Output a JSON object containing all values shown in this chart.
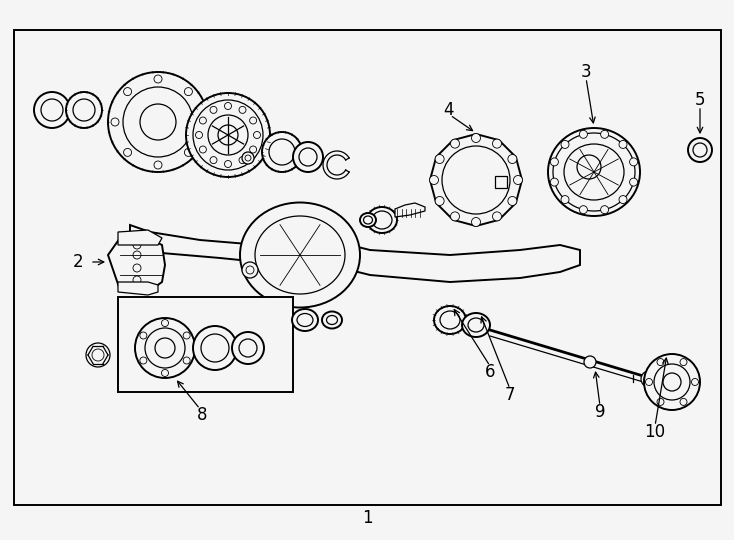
{
  "bg_color": "#f5f5f5",
  "border_color": "#000000",
  "line_color": "#000000",
  "figsize": [
    7.34,
    5.4
  ],
  "dpi": 100
}
